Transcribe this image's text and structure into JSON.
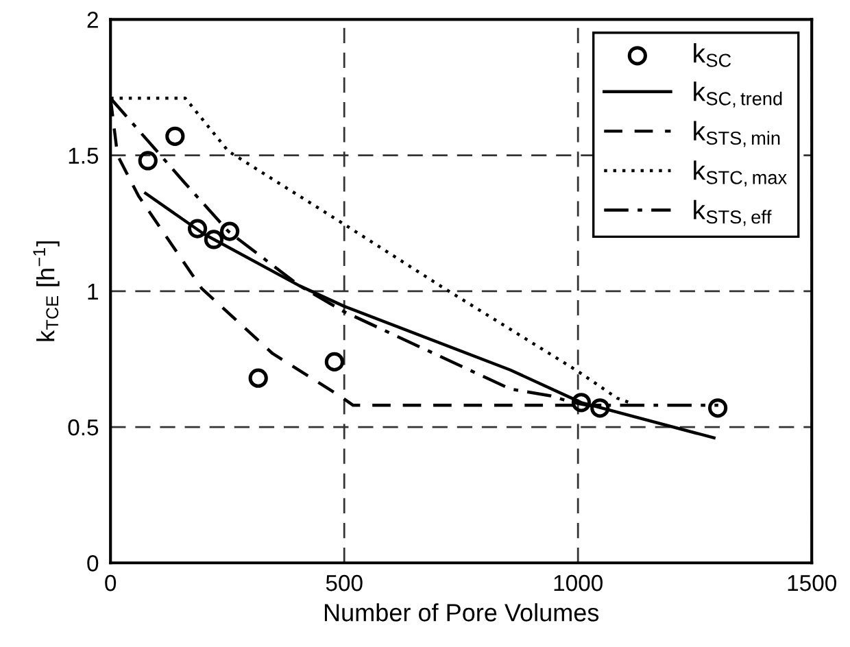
{
  "chart_data": {
    "type": "line",
    "xlabel": "Number of Pore Volumes",
    "ylabel": "k$_{TCE}$ [h$^{−1}$]",
    "xlim": [
      0,
      1500
    ],
    "ylim": [
      0,
      2
    ],
    "xticks": [
      0,
      500,
      1000,
      1500
    ],
    "yticks": [
      0,
      0.5,
      1,
      1.5,
      2
    ],
    "grid": true,
    "legend": "top right",
    "series": [
      {
        "name": "k$_{SC}$",
        "type": "scatter",
        "marker": "circle",
        "color": "#000000",
        "x": [
          80,
          138,
          186,
          221,
          255,
          316,
          479,
          1007,
          1047,
          1299
        ],
        "values": [
          1.48,
          1.57,
          1.23,
          1.19,
          1.22,
          0.68,
          0.74,
          0.59,
          0.57,
          0.57
        ]
      },
      {
        "name": "k$_{SC,trend}$",
        "line_style": "solid",
        "color": "#000000",
        "x": [
          75,
          200,
          404,
          499,
          855,
          1007,
          1291
        ],
        "values": [
          1.36,
          1.21,
          1.02,
          0.945,
          0.71,
          0.59,
          0.46
        ]
      },
      {
        "name": "k$_{STS,min}$",
        "line_style": "dashed",
        "color": "#000000",
        "x": [
          0,
          15,
          60,
          195,
          347,
          490,
          519,
          1050
        ],
        "values": [
          1.71,
          1.5,
          1.35,
          1.01,
          0.77,
          0.615,
          0.58,
          0.58
        ]
      },
      {
        "name": "k$_{STC,max}$",
        "line_style": "dotted",
        "color": "#000000",
        "x": [
          0,
          160,
          252,
          499,
          705,
          855,
          998,
          1084,
          1110
        ],
        "values": [
          1.71,
          1.71,
          1.515,
          1.247,
          1.02,
          0.86,
          0.707,
          0.606,
          0.59
        ]
      },
      {
        "name": "k$_{STS,eff}$",
        "line_style": "dashdot",
        "color": "#000000",
        "x": [
          0,
          158,
          252,
          404,
          499,
          855,
          941,
          989,
          1020,
          1300
        ],
        "values": [
          1.71,
          1.4,
          1.22,
          1.02,
          0.925,
          0.64,
          0.615,
          0.59,
          0.58,
          0.58
        ]
      }
    ]
  }
}
